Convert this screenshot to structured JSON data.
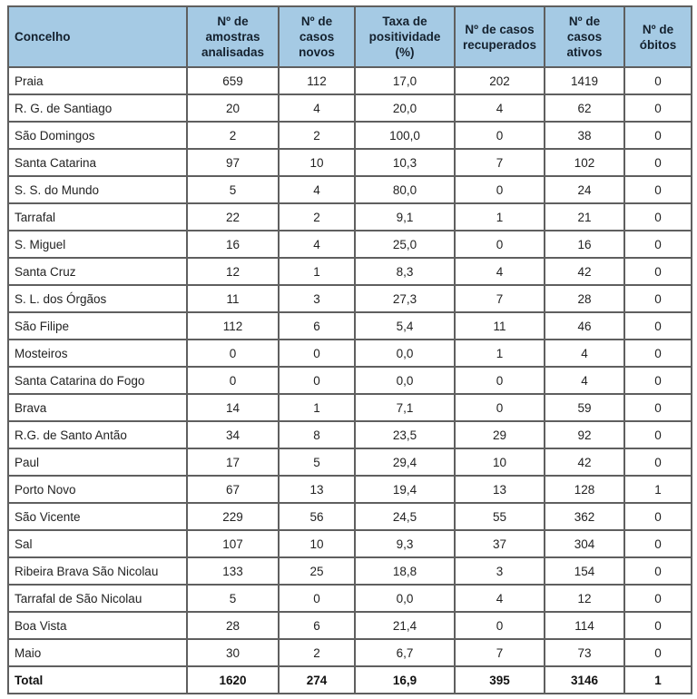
{
  "colors": {
    "header_bg": "#a5cae4",
    "grid_border": "#5f5f5f",
    "outer_border": "#3d3d3d",
    "text": "#222222"
  },
  "table": {
    "columns": [
      {
        "id": "concelho",
        "label": "Concelho"
      },
      {
        "id": "amostras",
        "label": "Nº de\namostras\nanalisadas"
      },
      {
        "id": "casos-novos",
        "label": "Nº de\ncasos\nnovos"
      },
      {
        "id": "taxa",
        "label": "Taxa de\npositividade\n(%)"
      },
      {
        "id": "recuperados",
        "label": "Nº de casos\nrecuperados"
      },
      {
        "id": "ativos",
        "label": "Nº de\ncasos\nativos"
      },
      {
        "id": "obitos",
        "label": "Nº de\nóbitos"
      }
    ],
    "rows": [
      {
        "cells": [
          "Praia",
          "659",
          "112",
          "17,0",
          "202",
          "1419",
          "0"
        ]
      },
      {
        "cells": [
          "R. G. de Santiago",
          "20",
          "4",
          "20,0",
          "4",
          "62",
          "0"
        ]
      },
      {
        "cells": [
          "São Domingos",
          "2",
          "2",
          "100,0",
          "0",
          "38",
          "0"
        ]
      },
      {
        "cells": [
          "Santa Catarina",
          "97",
          "10",
          "10,3",
          "7",
          "102",
          "0"
        ]
      },
      {
        "cells": [
          "S. S. do Mundo",
          "5",
          "4",
          "80,0",
          "0",
          "24",
          "0"
        ]
      },
      {
        "cells": [
          "Tarrafal",
          "22",
          "2",
          "9,1",
          "1",
          "21",
          "0"
        ]
      },
      {
        "cells": [
          "S. Miguel",
          "16",
          "4",
          "25,0",
          "0",
          "16",
          "0"
        ]
      },
      {
        "cells": [
          "Santa Cruz",
          "12",
          "1",
          "8,3",
          "4",
          "42",
          "0"
        ]
      },
      {
        "cells": [
          "S. L. dos Órgãos",
          "11",
          "3",
          "27,3",
          "7",
          "28",
          "0"
        ]
      },
      {
        "cells": [
          "São Filipe",
          "112",
          "6",
          "5,4",
          "11",
          "46",
          "0"
        ]
      },
      {
        "cells": [
          "Mosteiros",
          "0",
          "0",
          "0,0",
          "1",
          "4",
          "0"
        ]
      },
      {
        "cells": [
          "Santa Catarina do Fogo",
          "0",
          "0",
          "0,0",
          "0",
          "4",
          "0"
        ]
      },
      {
        "cells": [
          "Brava",
          "14",
          "1",
          "7,1",
          "0",
          "59",
          "0"
        ]
      },
      {
        "cells": [
          "R.G. de Santo Antão",
          "34",
          "8",
          "23,5",
          "29",
          "92",
          "0"
        ]
      },
      {
        "cells": [
          "Paul",
          "17",
          "5",
          "29,4",
          "10",
          "42",
          "0"
        ]
      },
      {
        "cells": [
          "Porto Novo",
          "67",
          "13",
          "19,4",
          "13",
          "128",
          "1"
        ]
      },
      {
        "cells": [
          "São Vicente",
          "229",
          "56",
          "24,5",
          "55",
          "362",
          "0"
        ]
      },
      {
        "cells": [
          "Sal",
          "107",
          "10",
          "9,3",
          "37",
          "304",
          "0"
        ]
      },
      {
        "cells": [
          "Ribeira Brava São Nicolau",
          "133",
          "25",
          "18,8",
          "3",
          "154",
          "0"
        ]
      },
      {
        "cells": [
          "Tarrafal de São Nicolau",
          "5",
          "0",
          "0,0",
          "4",
          "12",
          "0"
        ]
      },
      {
        "cells": [
          "Boa Vista",
          "28",
          "6",
          "21,4",
          "0",
          "114",
          "0"
        ]
      },
      {
        "cells": [
          "Maio",
          "30",
          "2",
          "6,7",
          "7",
          "73",
          "0"
        ]
      }
    ],
    "total": {
      "cells": [
        "Total",
        "1620",
        "274",
        "16,9",
        "395",
        "3146",
        "1"
      ]
    }
  }
}
